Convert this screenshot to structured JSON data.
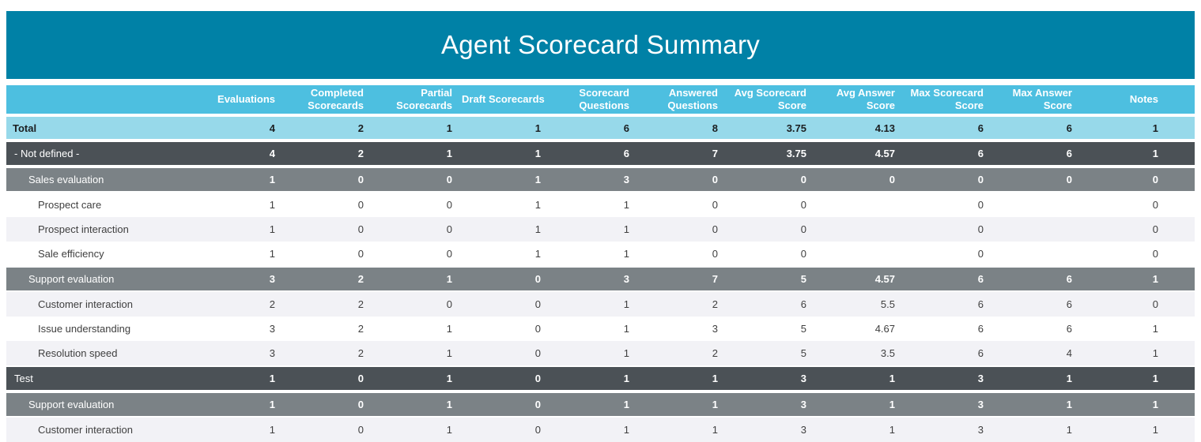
{
  "title": "Agent Scorecard Summary",
  "colors": {
    "banner_teal": "#0081A6",
    "header_blue": "#4DBFE0",
    "total_blue": "#97D9EA",
    "dark_gray": "#4B5156",
    "medium_gray": "#7B8286",
    "leaf_gray": "#F2F2F6"
  },
  "table": {
    "columns": [
      "Evaluations",
      "Completed Scorecards",
      "Partial Scorecards",
      "Draft Scorecards",
      "Scorecard Questions",
      "Answered Questions",
      "Avg Scorecard Score",
      "Avg Answer Score",
      "Max Scorecard Score",
      "Max Answer Score",
      "Notes"
    ],
    "rows": [
      {
        "label": "Total",
        "type": "total",
        "values": [
          "4",
          "2",
          "1",
          "1",
          "6",
          "8",
          "3.75",
          "4.13",
          "6",
          "6",
          "1"
        ]
      },
      {
        "label": "- Not defined -",
        "type": "group1",
        "values": [
          "4",
          "2",
          "1",
          "1",
          "6",
          "7",
          "3.75",
          "4.57",
          "6",
          "6",
          "1"
        ]
      },
      {
        "label": "Sales evaluation",
        "type": "group2",
        "values": [
          "1",
          "0",
          "0",
          "1",
          "3",
          "0",
          "0",
          "0",
          "0",
          "0",
          "0"
        ]
      },
      {
        "label": "Prospect care",
        "type": "leaf-white",
        "values": [
          "1",
          "0",
          "0",
          "1",
          "1",
          "0",
          "0",
          "",
          "0",
          "",
          "0"
        ]
      },
      {
        "label": "Prospect interaction",
        "type": "leaf-gray",
        "values": [
          "1",
          "0",
          "0",
          "1",
          "1",
          "0",
          "0",
          "",
          "0",
          "",
          "0"
        ]
      },
      {
        "label": "Sale efficiency",
        "type": "leaf-white",
        "values": [
          "1",
          "0",
          "0",
          "1",
          "1",
          "0",
          "0",
          "",
          "0",
          "",
          "0"
        ]
      },
      {
        "label": "Support evaluation",
        "type": "group2",
        "values": [
          "3",
          "2",
          "1",
          "0",
          "3",
          "7",
          "5",
          "4.57",
          "6",
          "6",
          "1"
        ]
      },
      {
        "label": "Customer interaction",
        "type": "leaf-gray",
        "values": [
          "2",
          "2",
          "0",
          "0",
          "1",
          "2",
          "6",
          "5.5",
          "6",
          "6",
          "0"
        ]
      },
      {
        "label": "Issue understanding",
        "type": "leaf-white",
        "values": [
          "3",
          "2",
          "1",
          "0",
          "1",
          "3",
          "5",
          "4.67",
          "6",
          "6",
          "1"
        ]
      },
      {
        "label": "Resolution speed",
        "type": "leaf-gray",
        "values": [
          "3",
          "2",
          "1",
          "0",
          "1",
          "2",
          "5",
          "3.5",
          "6",
          "4",
          "1"
        ]
      },
      {
        "label": "Test",
        "type": "group1",
        "values": [
          "1",
          "0",
          "1",
          "0",
          "1",
          "1",
          "3",
          "1",
          "3",
          "1",
          "1"
        ]
      },
      {
        "label": "Support evaluation",
        "type": "group2",
        "values": [
          "1",
          "0",
          "1",
          "0",
          "1",
          "1",
          "3",
          "1",
          "3",
          "1",
          "1"
        ]
      },
      {
        "label": "Customer interaction",
        "type": "leaf-gray",
        "values": [
          "1",
          "0",
          "1",
          "0",
          "1",
          "1",
          "3",
          "1",
          "3",
          "1",
          "1"
        ]
      }
    ]
  },
  "chart_data": {
    "type": "table",
    "title": "Agent Scorecard Summary",
    "columns": [
      "",
      "Evaluations",
      "Completed Scorecards",
      "Partial Scorecards",
      "Draft Scorecards",
      "Scorecard Questions",
      "Answered Questions",
      "Avg Scorecard Score",
      "Avg Answer Score",
      "Max Scorecard Score",
      "Max Answer Score",
      "Notes"
    ],
    "rows": [
      [
        "Total",
        4,
        2,
        1,
        1,
        6,
        8,
        3.75,
        4.13,
        6,
        6,
        1
      ],
      [
        "- Not defined -",
        4,
        2,
        1,
        1,
        6,
        7,
        3.75,
        4.57,
        6,
        6,
        1
      ],
      [
        "Sales evaluation",
        1,
        0,
        0,
        1,
        3,
        0,
        0,
        0,
        0,
        0,
        0
      ],
      [
        "Prospect care",
        1,
        0,
        0,
        1,
        1,
        0,
        0,
        null,
        0,
        null,
        0
      ],
      [
        "Prospect interaction",
        1,
        0,
        0,
        1,
        1,
        0,
        0,
        null,
        0,
        null,
        0
      ],
      [
        "Sale efficiency",
        1,
        0,
        0,
        1,
        1,
        0,
        0,
        null,
        0,
        null,
        0
      ],
      [
        "Support evaluation",
        3,
        2,
        1,
        0,
        3,
        7,
        5,
        4.57,
        6,
        6,
        1
      ],
      [
        "Customer interaction",
        2,
        2,
        0,
        0,
        1,
        2,
        6,
        5.5,
        6,
        6,
        0
      ],
      [
        "Issue understanding",
        3,
        2,
        1,
        0,
        1,
        3,
        5,
        4.67,
        6,
        6,
        1
      ],
      [
        "Resolution speed",
        3,
        2,
        1,
        0,
        1,
        2,
        5,
        3.5,
        6,
        4,
        1
      ],
      [
        "Test",
        1,
        0,
        1,
        0,
        1,
        1,
        3,
        1,
        3,
        1,
        1
      ],
      [
        "Support evaluation",
        1,
        0,
        1,
        0,
        1,
        1,
        3,
        1,
        3,
        1,
        1
      ],
      [
        "Customer interaction",
        1,
        0,
        1,
        0,
        1,
        1,
        3,
        1,
        3,
        1,
        1
      ]
    ]
  }
}
